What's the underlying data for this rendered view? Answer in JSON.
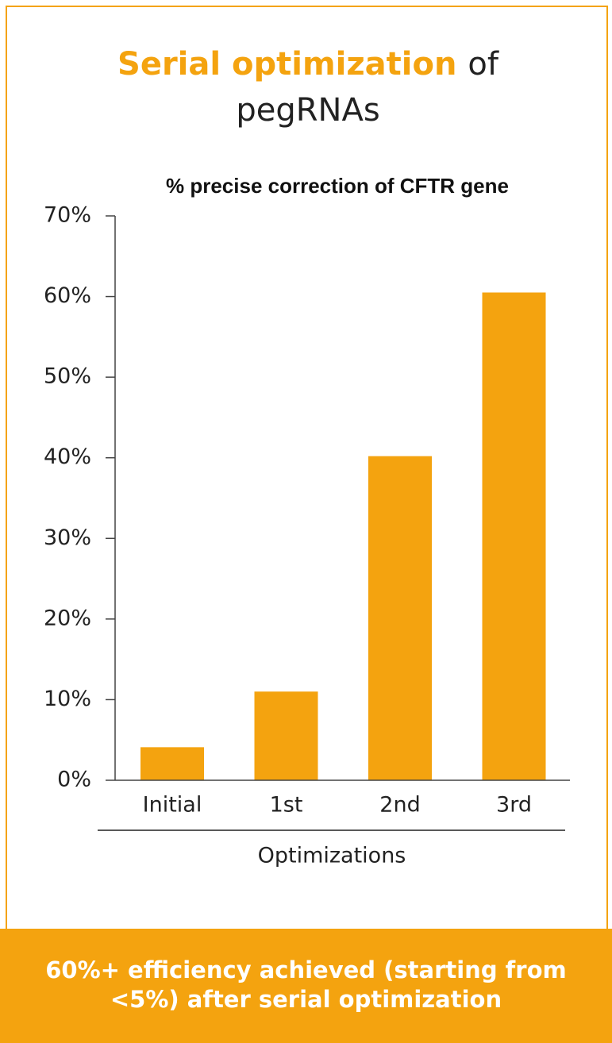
{
  "header": {
    "title_highlight": "Serial optimization",
    "title_rest": "of",
    "title_line2": "pegRNAs"
  },
  "chart_data": {
    "type": "bar",
    "title": "% precise correction of CFTR gene",
    "categories": [
      "Initial",
      "1st",
      "2nd",
      "3rd"
    ],
    "values": [
      4.1,
      11.0,
      40.2,
      60.5
    ],
    "color": "#f4a30f",
    "x_label": "Optimizations",
    "ylim": [
      0,
      70
    ],
    "yticks": [
      {
        "value": 0,
        "label": "0%"
      },
      {
        "value": 10,
        "label": "10%"
      },
      {
        "value": 20,
        "label": "20%"
      },
      {
        "value": 30,
        "label": "30%"
      },
      {
        "value": 40,
        "label": "40%"
      },
      {
        "value": 50,
        "label": "50%"
      },
      {
        "value": 60,
        "label": "60%"
      },
      {
        "value": 70,
        "label": "70%"
      }
    ],
    "grid": false
  },
  "footer": {
    "lines": [
      "60%+ efficiency achieved (starting from",
      "<5%) after serial optimization"
    ]
  }
}
